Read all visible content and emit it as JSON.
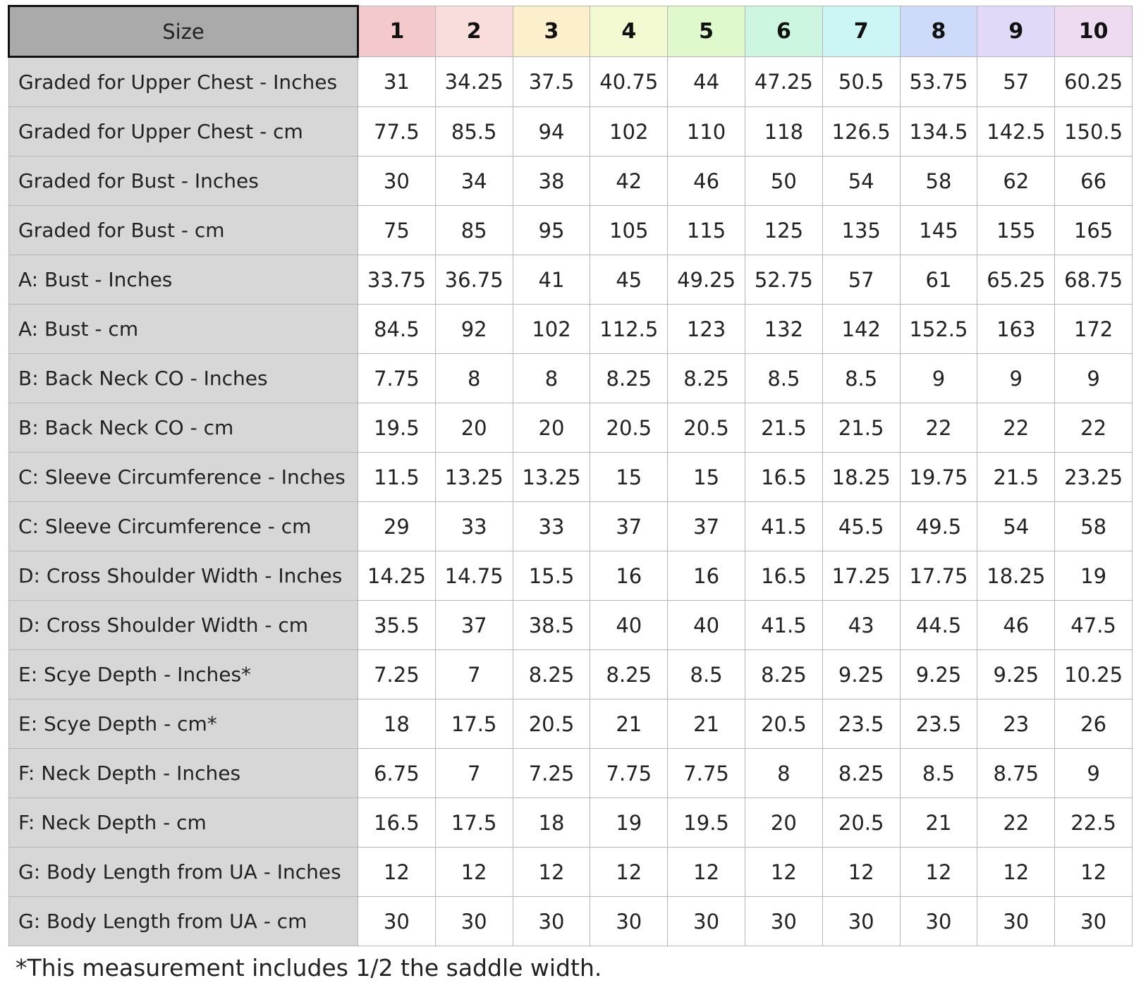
{
  "header": {
    "size_label": "Size",
    "sizes": [
      "1",
      "2",
      "3",
      "4",
      "5",
      "6",
      "7",
      "8",
      "9",
      "10"
    ]
  },
  "header_colors": [
    "#f4c9cc",
    "#f9dcdc",
    "#fcf0cc",
    "#f3f9d0",
    "#dff8cc",
    "#ccf6e0",
    "#ccf5f5",
    "#cedaf9",
    "#e1d9f7",
    "#eedbf1"
  ],
  "rows": [
    {
      "label": "Graded for Upper Chest - Inches",
      "values": [
        "31",
        "34.25",
        "37.5",
        "40.75",
        "44",
        "47.25",
        "50.5",
        "53.75",
        "57",
        "60.25"
      ]
    },
    {
      "label": "Graded for Upper Chest - cm",
      "values": [
        "77.5",
        "85.5",
        "94",
        "102",
        "110",
        "118",
        "126.5",
        "134.5",
        "142.5",
        "150.5"
      ]
    },
    {
      "label": "Graded for Bust - Inches",
      "values": [
        "30",
        "34",
        "38",
        "42",
        "46",
        "50",
        "54",
        "58",
        "62",
        "66"
      ]
    },
    {
      "label": "Graded for Bust - cm",
      "values": [
        "75",
        "85",
        "95",
        "105",
        "115",
        "125",
        "135",
        "145",
        "155",
        "165"
      ]
    },
    {
      "label": "A: Bust - Inches",
      "values": [
        "33.75",
        "36.75",
        "41",
        "45",
        "49.25",
        "52.75",
        "57",
        "61",
        "65.25",
        "68.75"
      ]
    },
    {
      "label": "A: Bust - cm",
      "values": [
        "84.5",
        "92",
        "102",
        "112.5",
        "123",
        "132",
        "142",
        "152.5",
        "163",
        "172"
      ]
    },
    {
      "label": "B: Back Neck CO - Inches",
      "values": [
        "7.75",
        "8",
        "8",
        "8.25",
        "8.25",
        "8.5",
        "8.5",
        "9",
        "9",
        "9"
      ]
    },
    {
      "label": "B: Back Neck CO - cm",
      "values": [
        "19.5",
        "20",
        "20",
        "20.5",
        "20.5",
        "21.5",
        "21.5",
        "22",
        "22",
        "22"
      ]
    },
    {
      "label": "C: Sleeve Circumference - Inches",
      "values": [
        "11.5",
        "13.25",
        "13.25",
        "15",
        "15",
        "16.5",
        "18.25",
        "19.75",
        "21.5",
        "23.25"
      ]
    },
    {
      "label": "C: Sleeve Circumference - cm",
      "values": [
        "29",
        "33",
        "33",
        "37",
        "37",
        "41.5",
        "45.5",
        "49.5",
        "54",
        "58"
      ]
    },
    {
      "label": "D: Cross Shoulder Width - Inches",
      "values": [
        "14.25",
        "14.75",
        "15.5",
        "16",
        "16",
        "16.5",
        "17.25",
        "17.75",
        "18.25",
        "19"
      ]
    },
    {
      "label": "D: Cross Shoulder Width - cm",
      "values": [
        "35.5",
        "37",
        "38.5",
        "40",
        "40",
        "41.5",
        "43",
        "44.5",
        "46",
        "47.5"
      ]
    },
    {
      "label": "E: Scye Depth - Inches*",
      "values": [
        "7.25",
        "7",
        "8.25",
        "8.25",
        "8.5",
        "8.25",
        "9.25",
        "9.25",
        "9.25",
        "10.25"
      ]
    },
    {
      "label": "E: Scye Depth - cm*",
      "values": [
        "18",
        "17.5",
        "20.5",
        "21",
        "21",
        "20.5",
        "23.5",
        "23.5",
        "23",
        "26"
      ]
    },
    {
      "label": "F: Neck Depth - Inches",
      "values": [
        "6.75",
        "7",
        "7.25",
        "7.75",
        "7.75",
        "8",
        "8.25",
        "8.5",
        "8.75",
        "9"
      ]
    },
    {
      "label": "F: Neck Depth - cm",
      "values": [
        "16.5",
        "17.5",
        "18",
        "19",
        "19.5",
        "20",
        "20.5",
        "21",
        "22",
        "22.5"
      ]
    },
    {
      "label": "G: Body Length from UA - Inches",
      "values": [
        "12",
        "12",
        "12",
        "12",
        "12",
        "12",
        "12",
        "12",
        "12",
        "12"
      ]
    },
    {
      "label": "G: Body Length from UA - cm",
      "values": [
        "30",
        "30",
        "30",
        "30",
        "30",
        "30",
        "30",
        "30",
        "30",
        "30"
      ]
    }
  ],
  "footnote": "*This measurement includes 1/2 the saddle width."
}
